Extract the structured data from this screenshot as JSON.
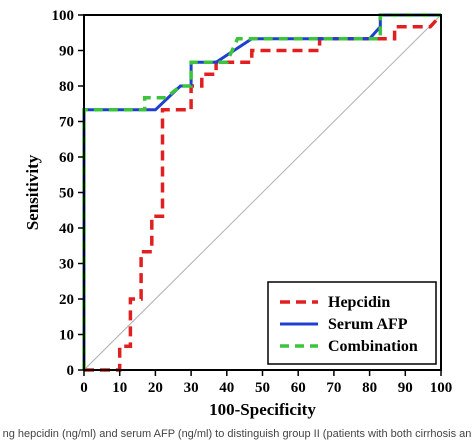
{
  "chart_data": {
    "type": "line",
    "xlabel": "100-Specificity",
    "ylabel": "Sensitivity",
    "xlim": [
      0,
      100
    ],
    "ylim": [
      0,
      100
    ],
    "xticks": [
      0,
      10,
      20,
      30,
      40,
      50,
      60,
      70,
      80,
      90,
      100
    ],
    "yticks": [
      0,
      10,
      20,
      30,
      40,
      50,
      60,
      70,
      80,
      90,
      100
    ],
    "grid": false,
    "reference_line": true,
    "legend_position": "bottom-right",
    "series": [
      {
        "name": "Hepcidin",
        "color": "#e02020",
        "style": "dashed",
        "points": [
          [
            0,
            0
          ],
          [
            10,
            0
          ],
          [
            10,
            6.7
          ],
          [
            13,
            6.7
          ],
          [
            13,
            20
          ],
          [
            16,
            20
          ],
          [
            16,
            33.3
          ],
          [
            19,
            33.3
          ],
          [
            19,
            43.3
          ],
          [
            22,
            43.3
          ],
          [
            22,
            73.3
          ],
          [
            30,
            73.3
          ],
          [
            30,
            80
          ],
          [
            33,
            80
          ],
          [
            33,
            83.3
          ],
          [
            37,
            83.3
          ],
          [
            37,
            86.7
          ],
          [
            47,
            86.7
          ],
          [
            47,
            90
          ],
          [
            66,
            90
          ],
          [
            66,
            93.3
          ],
          [
            87,
            93.3
          ],
          [
            87,
            96.7
          ],
          [
            97,
            96.7
          ],
          [
            100,
            100
          ]
        ]
      },
      {
        "name": "Serum AFP",
        "color": "#1f3fd0",
        "style": "solid",
        "points": [
          [
            0,
            0
          ],
          [
            0,
            73.3
          ],
          [
            20,
            73.3
          ],
          [
            27,
            80
          ],
          [
            30,
            80
          ],
          [
            30,
            86.7
          ],
          [
            37,
            86.7
          ],
          [
            47,
            93.3
          ],
          [
            80,
            93.3
          ],
          [
            83,
            96.7
          ],
          [
            83,
            100
          ],
          [
            100,
            100
          ]
        ]
      },
      {
        "name": "Combination",
        "color": "#3cc43c",
        "style": "dashed",
        "points": [
          [
            0,
            0
          ],
          [
            0,
            73.3
          ],
          [
            17,
            73.3
          ],
          [
            17,
            76.7
          ],
          [
            23,
            76.7
          ],
          [
            27,
            80
          ],
          [
            30,
            80
          ],
          [
            30,
            86.7
          ],
          [
            40,
            86.7
          ],
          [
            43,
            93.3
          ],
          [
            83,
            93.3
          ],
          [
            83,
            100
          ],
          [
            100,
            100
          ]
        ]
      }
    ]
  },
  "caption": "ng hepcidin (ng/ml) and serum AFP (ng/ml) to distinguish group II (patients with both cirrhosis an"
}
